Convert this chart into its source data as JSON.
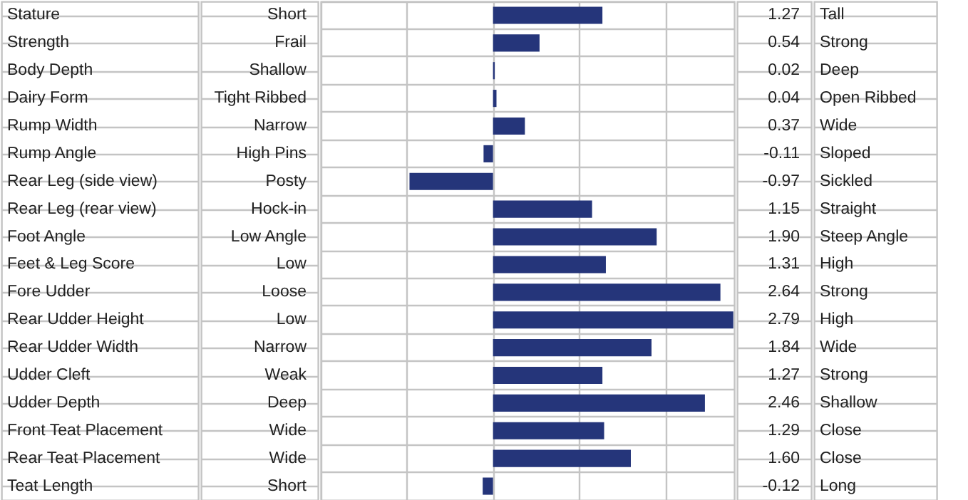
{
  "chart_data": {
    "type": "bar",
    "orientation": "horizontal",
    "categories": [
      "Stature",
      "Strength",
      "Body Depth",
      "Dairy Form",
      "Rump Width",
      "Rump Angle",
      "Rear Leg (side view)",
      "Rear Leg (rear view)",
      "Foot Angle",
      "Feet & Leg Score",
      "Fore Udder",
      "Rear Udder Height",
      "Rear Udder Width",
      "Udder Cleft",
      "Udder Depth",
      "Front Teat Placement",
      "Rear Teat Placement",
      "Teat Length"
    ],
    "y_categories": [
      "Short",
      "Frail",
      "Shallow",
      "Tight Ribbed",
      "Narrow",
      "High Pins",
      "Posty",
      "Hock-in",
      "Low Angle",
      "Low",
      "Loose",
      "Low",
      "Narrow",
      "Weak",
      "Deep",
      "Wide",
      "Wide",
      "Short"
    ],
    "y2_categories": [
      "Tall",
      "Strong",
      "Deep",
      "Open Ribbed",
      "Wide",
      "Sloped",
      "Sickled",
      "Straight",
      "Steep Angle",
      "High",
      "Strong",
      "High",
      "Wide",
      "Strong",
      "Shallow",
      "Close",
      "Close",
      "Long"
    ],
    "values": [
      1.27,
      0.54,
      0.02,
      0.04,
      0.37,
      -0.11,
      -0.97,
      1.15,
      1.9,
      1.31,
      2.64,
      2.79,
      1.84,
      1.27,
      2.46,
      1.29,
      1.6,
      -0.12
    ],
    "value_labels": [
      "1.27",
      "0.54",
      "0.02",
      "0.04",
      "0.37",
      "-0.11",
      "-0.97",
      "1.15",
      "1.90",
      "1.31",
      "2.64",
      "2.79",
      "1.84",
      "1.27",
      "2.46",
      "1.29",
      "1.60",
      "-0.12"
    ],
    "color": "#25357a",
    "xlim": [
      -2,
      2.8
    ],
    "xticks": [
      {
        "value": -2,
        "label": null
      },
      {
        "value": -1,
        "label": null
      },
      {
        "value": 0,
        "label": null
      },
      {
        "value": 1,
        "label": null
      },
      {
        "value": 2,
        "label": null
      }
    ],
    "grid": true
  }
}
